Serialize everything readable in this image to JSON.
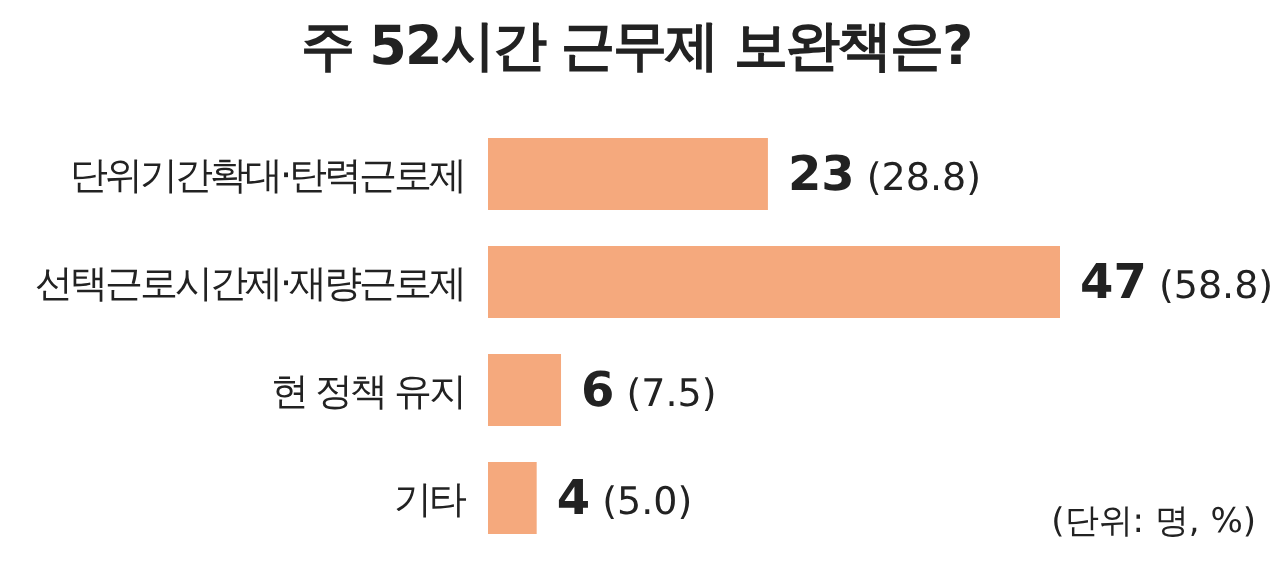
{
  "chart_data": {
    "type": "bar",
    "orientation": "horizontal",
    "title": "주 52시간 근무제 보완책은?",
    "categories": [
      "단위기간확대·탄력근로제",
      "선택근로시간제·재량근로제",
      "현 정책 유지",
      "기타"
    ],
    "values": [
      23,
      47,
      6,
      4
    ],
    "value_labels": [
      "23 (28.8)",
      "47 (58.8)",
      "6 (7.5)",
      "4 (5.0)"
    ],
    "color": "#f5a97d",
    "annotations": [
      "(단위: 명, %)"
    ]
  }
}
